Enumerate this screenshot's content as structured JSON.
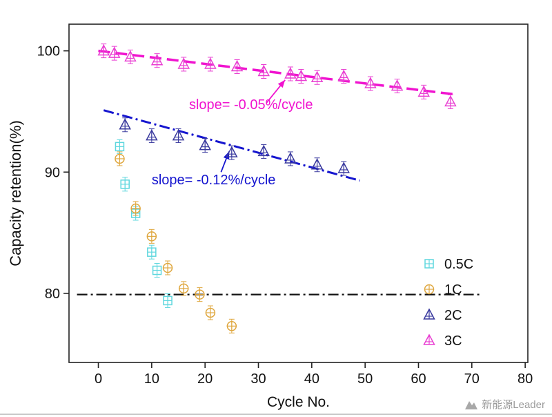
{
  "chart_data": {
    "type": "scatter",
    "title": "",
    "xlabel": "Cycle No.",
    "ylabel": "Capacity retention(%)",
    "xlim": [
      -5.5,
      80.5
    ],
    "ylim": [
      74.3,
      102.2
    ],
    "xticks": [
      0,
      10,
      20,
      30,
      40,
      50,
      60,
      70,
      80
    ],
    "yticks": [
      80,
      90,
      100
    ],
    "grid": false,
    "legend_position": "lower right",
    "series": [
      {
        "name": "0.5C",
        "marker": "square-cross",
        "color": "#5fd7de",
        "points": [
          [
            4,
            92.1
          ],
          [
            5,
            89.0
          ],
          [
            7,
            86.6
          ],
          [
            10,
            83.4
          ],
          [
            11,
            81.9
          ],
          [
            13,
            79.4
          ]
        ]
      },
      {
        "name": "1C",
        "marker": "circle-cross",
        "color": "#dfa73e",
        "points": [
          [
            4,
            91.1
          ],
          [
            7,
            87.0
          ],
          [
            10,
            84.7
          ],
          [
            13,
            82.1
          ],
          [
            16,
            80.4
          ],
          [
            19,
            79.9
          ],
          [
            21,
            78.4
          ],
          [
            25,
            77.3
          ]
        ]
      },
      {
        "name": "2C",
        "marker": "triangle-cross",
        "color": "#3a3a9e",
        "points": [
          [
            5,
            93.9
          ],
          [
            10,
            93.0
          ],
          [
            15,
            93.0
          ],
          [
            20,
            92.2
          ],
          [
            25,
            91.6
          ],
          [
            31,
            91.7
          ],
          [
            36,
            91.1
          ],
          [
            41,
            90.6
          ],
          [
            46,
            90.3
          ]
        ]
      },
      {
        "name": "3C",
        "marker": "triangle-cross",
        "color": "#e93fd2",
        "points": [
          [
            1,
            100.0
          ],
          [
            3,
            99.8
          ],
          [
            6,
            99.5
          ],
          [
            11,
            99.2
          ],
          [
            16,
            98.9
          ],
          [
            21,
            98.9
          ],
          [
            26,
            98.7
          ],
          [
            31,
            98.3
          ],
          [
            36,
            98.1
          ],
          [
            38,
            97.9
          ],
          [
            41,
            97.8
          ],
          [
            46,
            97.9
          ],
          [
            51,
            97.3
          ],
          [
            56,
            97.1
          ],
          [
            61,
            96.6
          ],
          [
            66,
            95.8
          ]
        ]
      }
    ],
    "trend_lines": [
      {
        "name": "trend-line-3c",
        "color": "#f013cf",
        "dash": "17 8",
        "width": 3.5,
        "x1": 0,
        "y1": 100.0,
        "x2": 67,
        "y2": 96.4
      },
      {
        "name": "trend-line-2c",
        "color": "#1515cf",
        "dash": "15 5 3 5",
        "width": 3,
        "x1": 1,
        "y1": 95.1,
        "x2": 49,
        "y2": 89.3
      },
      {
        "name": "retention-80-line",
        "color": "#111111",
        "dash": "15 5 3 5",
        "width": 2.2,
        "x1": -4,
        "y1": 79.9,
        "x2": 72,
        "y2": 79.9
      }
    ],
    "annotations": [
      {
        "name": "slope-annotation-3c",
        "text": "slope= -0.05%/cycle",
        "color": "#f013cf",
        "x": 17,
        "y": 95.2,
        "arrow_from": [
          31.5,
          95.7
        ],
        "arrow_to": [
          35,
          97.6
        ]
      },
      {
        "name": "slope-annotation-2c",
        "text": "slope= -0.12%/cycle",
        "color": "#1515cf",
        "x": 10,
        "y": 89.0,
        "arrow_from": [
          23,
          90.0
        ],
        "arrow_to": [
          24.5,
          91.7
        ]
      }
    ],
    "legend": [
      {
        "label": "0.5C"
      },
      {
        "label": "1C"
      },
      {
        "label": "2C"
      },
      {
        "label": "3C"
      }
    ]
  },
  "watermark": {
    "text": "新能源Leader"
  }
}
